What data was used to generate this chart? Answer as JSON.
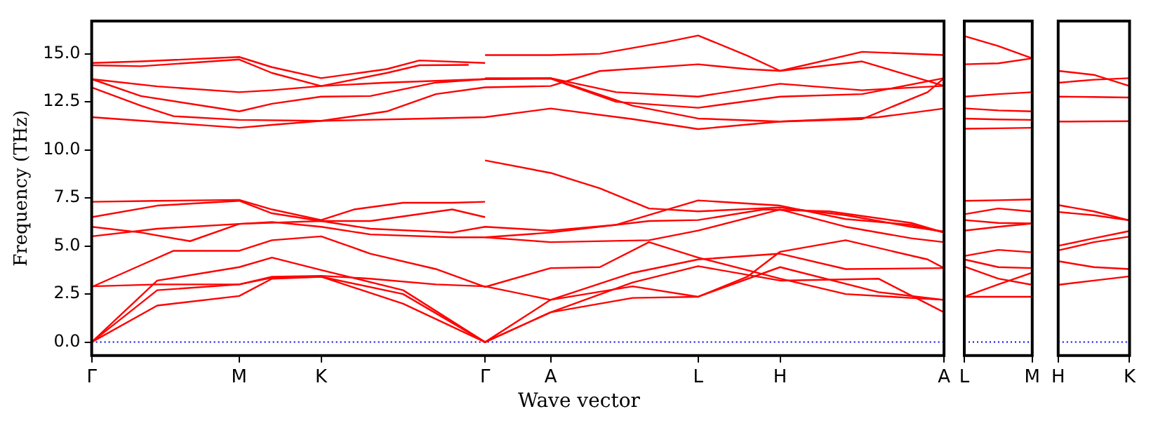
{
  "chart_data": [
    {
      "type": "line",
      "xlabel": "Wave vector",
      "ylabel": "Frequency (THz)",
      "ylim": [
        -0.7,
        16.7
      ],
      "categories": [
        "Γ",
        null,
        null,
        null,
        null,
        null,
        null,
        null,
        null,
        "M",
        null,
        null,
        null,
        null,
        "K",
        null,
        null,
        null,
        null,
        null,
        null,
        null,
        null,
        null,
        "Γ",
        null,
        null,
        null,
        "A",
        null,
        null,
        null,
        null,
        null,
        null,
        null,
        null,
        "L",
        null,
        null,
        null,
        null,
        "H",
        null,
        null,
        null,
        null,
        null,
        null,
        null,
        null,
        null,
        "A"
      ],
      "yticks": [
        {
          "value": 0,
          "label": "0.0"
        },
        {
          "value": 2.5,
          "label": "2.5"
        },
        {
          "value": 5,
          "label": "5.0"
        },
        {
          "value": 7.5,
          "label": "7.5"
        },
        {
          "value": 10,
          "label": "10.0"
        },
        {
          "value": 12.5,
          "label": "12.5"
        },
        {
          "value": 15,
          "label": "15.0"
        }
      ],
      "grid": false,
      "legend": false,
      "marker": "none",
      "line_style": "solid",
      "ref_lines": [
        {
          "axis": "y",
          "value": 0,
          "color": "#0000ff",
          "line_style": "dotted"
        }
      ],
      "series": [
        {
          "color": "#ff0000",
          "values": [
            14.52,
            null,
            null,
            14.6,
            null,
            null,
            null,
            null,
            null,
            14.83,
            null,
            14.3,
            null,
            null,
            13.73,
            null,
            null,
            null,
            14.2,
            null,
            14.65,
            null,
            null,
            null,
            14.52,
            null,
            null,
            null,
            null,
            null,
            null,
            null,
            null,
            null,
            null,
            null,
            null,
            null,
            null,
            null,
            null,
            null,
            null,
            null,
            null,
            null,
            null,
            null,
            null,
            null,
            null,
            null,
            null
          ]
        },
        {
          "color": "#ff0000",
          "values": [
            14.4,
            null,
            null,
            14.35,
            null,
            null,
            null,
            null,
            null,
            14.7,
            null,
            14.0,
            null,
            null,
            13.32,
            null,
            null,
            null,
            14.0,
            null,
            14.4,
            null,
            null,
            14.42,
            null,
            null,
            null,
            null,
            null,
            null,
            null,
            null,
            null,
            null,
            null,
            null,
            null,
            null,
            null,
            null,
            null,
            null,
            null,
            null,
            null,
            null,
            null,
            null,
            null,
            null,
            null,
            null,
            null
          ]
        },
        {
          "color": "#ff0000",
          "values": [
            13.68,
            null,
            null,
            null,
            13.3,
            null,
            null,
            null,
            null,
            13.0,
            null,
            13.1,
            null,
            null,
            13.32,
            null,
            null,
            null,
            13.5,
            null,
            null,
            null,
            null,
            null,
            13.68,
            null,
            null,
            null,
            13.7,
            null,
            null,
            null,
            12.5,
            null,
            null,
            null,
            null,
            12.19,
            null,
            null,
            null,
            null,
            12.77,
            null,
            null,
            null,
            null,
            12.9,
            null,
            null,
            null,
            null,
            13.73
          ]
        },
        {
          "color": "#ff0000",
          "values": [
            13.68,
            null,
            null,
            12.8,
            null,
            null,
            null,
            null,
            null,
            12.0,
            null,
            12.4,
            null,
            null,
            12.77,
            null,
            null,
            12.8,
            null,
            null,
            null,
            13.5,
            null,
            null,
            13.68,
            null,
            null,
            null,
            13.73,
            null,
            null,
            null,
            13.0,
            null,
            null,
            null,
            null,
            12.77,
            null,
            null,
            null,
            null,
            13.44,
            null,
            null,
            null,
            null,
            13.1,
            null,
            null,
            null,
            null,
            13.33
          ]
        },
        {
          "color": "#ff0000",
          "values": [
            13.25,
            null,
            null,
            12.3,
            null,
            11.75,
            null,
            null,
            null,
            11.56,
            null,
            null,
            null,
            null,
            11.51,
            null,
            null,
            null,
            null,
            11.6,
            null,
            null,
            null,
            null,
            11.7,
            null,
            null,
            null,
            12.15,
            null,
            null,
            null,
            null,
            11.6,
            null,
            null,
            null,
            11.08,
            null,
            null,
            null,
            null,
            11.47,
            null,
            null,
            null,
            null,
            11.6,
            null,
            null,
            null,
            13.0,
            13.73
          ]
        },
        {
          "color": "#ff0000",
          "values": [
            11.7,
            null,
            null,
            null,
            null,
            null,
            null,
            null,
            null,
            11.15,
            null,
            11.3,
            null,
            null,
            11.51,
            null,
            null,
            null,
            12.0,
            null,
            null,
            12.9,
            null,
            null,
            13.25,
            null,
            null,
            null,
            13.32,
            null,
            null,
            14.1,
            null,
            null,
            null,
            null,
            null,
            14.45,
            null,
            null,
            14.2,
            null,
            14.11,
            null,
            null,
            null,
            null,
            14.6,
            null,
            null,
            null,
            null,
            13.33
          ]
        },
        {
          "color": "#ff0000",
          "values": [
            7.3,
            null,
            null,
            null,
            7.35,
            null,
            null,
            null,
            null,
            7.4,
            null,
            6.9,
            null,
            null,
            6.35,
            null,
            6.9,
            null,
            null,
            7.25,
            null,
            null,
            7.25,
            null,
            7.3,
            null,
            null,
            null,
            null,
            null,
            null,
            null,
            null,
            null,
            null,
            null,
            null,
            null,
            null,
            null,
            null,
            null,
            null,
            null,
            null,
            null,
            null,
            null,
            null,
            null,
            null,
            null,
            null
          ]
        },
        {
          "color": "#ff0000",
          "values": [
            6.5,
            null,
            null,
            null,
            7.1,
            null,
            null,
            null,
            null,
            7.35,
            null,
            6.7,
            null,
            null,
            6.3,
            null,
            null,
            6.3,
            null,
            null,
            null,
            null,
            6.9,
            null,
            6.5,
            null,
            null,
            null,
            null,
            null,
            null,
            null,
            null,
            null,
            null,
            null,
            null,
            null,
            null,
            null,
            null,
            null,
            null,
            null,
            null,
            null,
            null,
            null,
            null,
            null,
            null,
            null,
            null
          ]
        },
        {
          "color": "#ff0000",
          "values": [
            6.0,
            null,
            null,
            5.7,
            null,
            null,
            5.25,
            null,
            null,
            6.15,
            null,
            null,
            null,
            null,
            6.3,
            null,
            null,
            5.9,
            null,
            null,
            null,
            null,
            5.7,
            null,
            6.0,
            null,
            null,
            null,
            5.8,
            null,
            null,
            null,
            6.1,
            null,
            null,
            null,
            null,
            7.37,
            null,
            null,
            null,
            null,
            7.1,
            null,
            null,
            null,
            6.4,
            null,
            null,
            null,
            6.1,
            null,
            5.7
          ]
        },
        {
          "color": "#ff0000",
          "values": [
            5.5,
            null,
            null,
            null,
            5.9,
            null,
            null,
            null,
            null,
            6.15,
            null,
            6.25,
            null,
            null,
            6.0,
            null,
            null,
            5.6,
            null,
            null,
            null,
            null,
            5.45,
            null,
            5.45,
            null,
            null,
            null,
            5.7,
            null,
            null,
            null,
            null,
            null,
            6.3,
            null,
            null,
            6.35,
            null,
            null,
            null,
            6.9,
            null,
            null,
            null,
            6.8,
            null,
            null,
            null,
            null,
            6.2,
            null,
            5.7
          ]
        },
        {
          "color": "#ff0000",
          "values": [
            2.87,
            null,
            null,
            4.0,
            null,
            4.75,
            null,
            null,
            null,
            4.75,
            null,
            5.3,
            null,
            null,
            5.5,
            null,
            null,
            4.6,
            null,
            null,
            null,
            3.8,
            null,
            null,
            2.87,
            null,
            null,
            null,
            3.85,
            null,
            null,
            3.9,
            null,
            null,
            5.2,
            null,
            null,
            4.4,
            null,
            null,
            null,
            null,
            3.3,
            null,
            null,
            null,
            2.5,
            null,
            null,
            null,
            null,
            null,
            2.2
          ]
        },
        {
          "color": "#ff0000",
          "values": [
            2.9,
            null,
            null,
            null,
            3.0,
            null,
            null,
            null,
            null,
            3.0,
            null,
            3.4,
            null,
            null,
            3.45,
            null,
            null,
            3.3,
            null,
            null,
            null,
            3.0,
            null,
            null,
            2.9,
            null,
            null,
            null,
            2.2,
            null,
            null,
            null,
            null,
            3.6,
            null,
            null,
            null,
            4.3,
            null,
            null,
            null,
            null,
            4.6,
            null,
            null,
            null,
            3.8,
            null,
            null,
            null,
            null,
            null,
            3.85
          ]
        },
        {
          "color": "#ff0000",
          "values": [
            0,
            null,
            null,
            null,
            3.2,
            null,
            null,
            null,
            null,
            3.9,
            null,
            4.4,
            null,
            null,
            3.75,
            null,
            null,
            null,
            null,
            2.7,
            null,
            null,
            null,
            null,
            0,
            null,
            null,
            null,
            2.2,
            null,
            null,
            null,
            null,
            2.9,
            null,
            null,
            null,
            2.36,
            null,
            null,
            3.4,
            null,
            4.7,
            null,
            null,
            null,
            5.3,
            null,
            null,
            null,
            null,
            4.3,
            3.85
          ]
        },
        {
          "color": "#ff0000",
          "values": [
            0,
            null,
            null,
            null,
            2.7,
            null,
            null,
            null,
            null,
            3.0,
            null,
            3.35,
            null,
            null,
            3.4,
            null,
            null,
            null,
            null,
            2.0,
            null,
            null,
            null,
            null,
            0,
            null,
            null,
            null,
            1.55,
            null,
            null,
            null,
            null,
            3.1,
            null,
            null,
            null,
            3.95,
            null,
            null,
            null,
            null,
            3.2,
            null,
            null,
            null,
            null,
            null,
            3.3,
            null,
            null,
            null,
            1.55
          ]
        },
        {
          "color": "#ff0000",
          "values": [
            0,
            null,
            null,
            null,
            1.9,
            null,
            null,
            null,
            null,
            2.4,
            null,
            3.3,
            null,
            null,
            3.4,
            null,
            null,
            null,
            null,
            2.5,
            null,
            null,
            null,
            null,
            0,
            null,
            null,
            null,
            1.55,
            null,
            null,
            null,
            null,
            2.3,
            null,
            null,
            null,
            2.36,
            null,
            null,
            null,
            null,
            3.9,
            null,
            null,
            null,
            null,
            null,
            2.6,
            null,
            null,
            null,
            2.2
          ]
        },
        {
          "color": "#ff0000",
          "values": [
            null,
            null,
            null,
            null,
            null,
            null,
            null,
            null,
            null,
            null,
            null,
            null,
            null,
            null,
            null,
            null,
            null,
            null,
            null,
            null,
            null,
            null,
            null,
            null,
            14.93,
            null,
            null,
            null,
            14.93,
            null,
            null,
            15.0,
            null,
            null,
            null,
            15.6,
            null,
            15.95,
            null,
            null,
            14.9,
            null,
            14.11,
            null,
            null,
            null,
            null,
            15.1,
            null,
            null,
            null,
            null,
            14.93
          ]
        },
        {
          "color": "#ff0000",
          "values": [
            null,
            null,
            null,
            null,
            null,
            null,
            null,
            null,
            null,
            null,
            null,
            null,
            null,
            null,
            null,
            null,
            null,
            null,
            null,
            null,
            null,
            null,
            null,
            null,
            13.73,
            null,
            null,
            null,
            13.73,
            null,
            null,
            null,
            null,
            12.3,
            null,
            null,
            null,
            11.63,
            null,
            null,
            null,
            null,
            11.47,
            null,
            null,
            null,
            null,
            null,
            11.7,
            null,
            null,
            null,
            12.15
          ]
        },
        {
          "color": "#ff0000",
          "values": [
            null,
            null,
            null,
            null,
            null,
            null,
            null,
            null,
            null,
            null,
            null,
            null,
            null,
            null,
            null,
            null,
            null,
            null,
            null,
            null,
            null,
            null,
            null,
            null,
            9.45,
            null,
            null,
            null,
            8.8,
            null,
            null,
            8.0,
            null,
            null,
            6.95,
            null,
            null,
            6.8,
            null,
            null,
            null,
            null,
            7.0,
            null,
            null,
            null,
            6.6,
            null,
            null,
            null,
            6.0,
            null,
            5.75
          ]
        },
        {
          "color": "#ff0000",
          "values": [
            null,
            null,
            null,
            null,
            null,
            null,
            null,
            null,
            null,
            null,
            null,
            null,
            null,
            null,
            null,
            null,
            null,
            null,
            null,
            null,
            null,
            null,
            null,
            null,
            5.45,
            null,
            null,
            null,
            5.2,
            null,
            null,
            null,
            null,
            null,
            5.3,
            null,
            null,
            5.8,
            null,
            null,
            null,
            null,
            6.9,
            null,
            null,
            null,
            6.0,
            null,
            null,
            null,
            5.4,
            null,
            5.2
          ]
        }
      ]
    },
    {
      "type": "line",
      "ylim": [
        -0.7,
        16.7
      ],
      "tick_labels": "x",
      "categories": [
        "L",
        null,
        "M"
      ],
      "grid": false,
      "legend": false,
      "marker": "none",
      "line_style": "solid",
      "ref_lines": [
        {
          "axis": "y",
          "value": 0,
          "color": "#0000ff",
          "line_style": "dotted"
        }
      ],
      "series": [
        {
          "color": "#ff0000",
          "values": [
            15.92,
            15.4,
            14.76
          ]
        },
        {
          "color": "#ff0000",
          "values": [
            14.45,
            14.5,
            14.76
          ]
        },
        {
          "color": "#ff0000",
          "values": [
            12.77,
            12.9,
            13.0
          ]
        },
        {
          "color": "#ff0000",
          "values": [
            12.16,
            12.05,
            12.0
          ]
        },
        {
          "color": "#ff0000",
          "values": [
            11.63,
            11.58,
            11.56
          ]
        },
        {
          "color": "#ff0000",
          "values": [
            11.1,
            11.12,
            11.15
          ]
        },
        {
          "color": "#ff0000",
          "values": [
            7.35,
            7.38,
            7.42
          ]
        },
        {
          "color": "#ff0000",
          "values": [
            6.65,
            6.95,
            6.79
          ]
        },
        {
          "color": "#ff0000",
          "values": [
            6.35,
            6.2,
            6.17
          ]
        },
        {
          "color": "#ff0000",
          "values": [
            5.8,
            6.0,
            6.17
          ]
        },
        {
          "color": "#ff0000",
          "values": [
            4.48,
            4.8,
            4.67
          ]
        },
        {
          "color": "#ff0000",
          "values": [
            4.3,
            3.9,
            3.85
          ]
        },
        {
          "color": "#ff0000",
          "values": [
            3.93,
            3.3,
            2.98
          ]
        },
        {
          "color": "#ff0000",
          "values": [
            2.36,
            3.0,
            3.61
          ]
        },
        {
          "color": "#ff0000",
          "values": [
            2.36,
            2.36,
            2.36
          ]
        }
      ]
    },
    {
      "type": "line",
      "ylim": [
        -0.7,
        16.7
      ],
      "tick_labels": "x",
      "categories": [
        "H",
        null,
        "K"
      ],
      "grid": false,
      "legend": false,
      "marker": "none",
      "line_style": "solid",
      "ref_lines": [
        {
          "axis": "y",
          "value": 0,
          "color": "#0000ff",
          "line_style": "dotted"
        }
      ],
      "series": [
        {
          "color": "#ff0000",
          "values": [
            14.11,
            13.9,
            13.32
          ]
        },
        {
          "color": "#ff0000",
          "values": [
            13.49,
            13.65,
            13.73
          ]
        },
        {
          "color": "#ff0000",
          "values": [
            12.77,
            12.75,
            12.72
          ]
        },
        {
          "color": "#ff0000",
          "values": [
            11.47,
            11.48,
            11.49
          ]
        },
        {
          "color": "#ff0000",
          "values": [
            7.13,
            6.8,
            6.33
          ]
        },
        {
          "color": "#ff0000",
          "values": [
            6.77,
            6.6,
            6.33
          ]
        },
        {
          "color": "#ff0000",
          "values": [
            5.01,
            5.4,
            5.78
          ]
        },
        {
          "color": "#ff0000",
          "values": [
            4.77,
            5.2,
            5.49
          ]
        },
        {
          "color": "#ff0000",
          "values": [
            4.21,
            3.9,
            3.8
          ]
        },
        {
          "color": "#ff0000",
          "values": [
            2.98,
            3.2,
            3.42
          ]
        }
      ]
    }
  ]
}
